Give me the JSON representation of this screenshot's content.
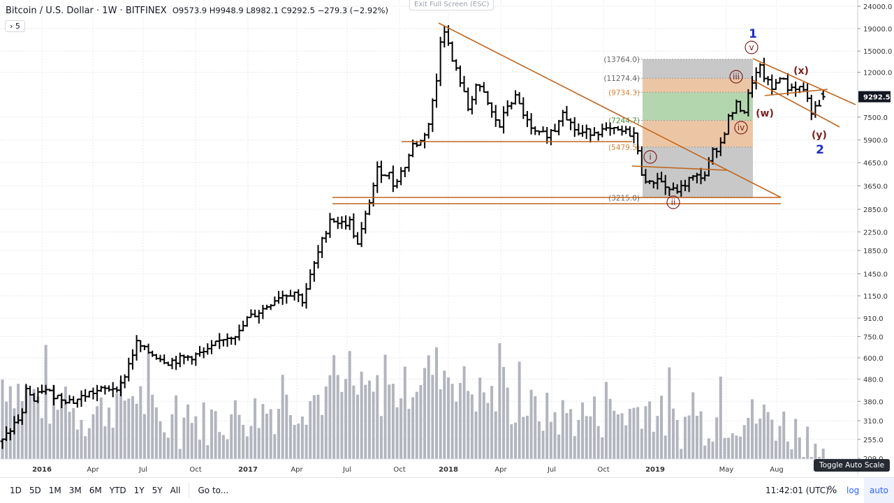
{
  "header": {
    "symbol": "Bitcoin / U.S. Dollar",
    "interval": "1W",
    "exchange": "BITFINEX",
    "open": "O9573.9",
    "high": "H9948.9",
    "low": "L8982.1",
    "close": "C9292.5",
    "change": "−279.3 (−2.92%)",
    "collapse_label": "› 5"
  },
  "exit_fullscreen": "Exit Full Screen (ESC)",
  "price_axis": {
    "ticks": [
      "24000.0",
      "19000.0",
      "15000.0",
      "12000.0",
      "7500.0",
      "5900.0",
      "4650.0",
      "3650.0",
      "2850.0",
      "2250.0",
      "1850.0",
      "1450.0",
      "1150.0",
      "910.0",
      "750.0",
      "600.0",
      "480.0",
      "380.0",
      "310.0",
      "255.0",
      "209.0"
    ],
    "last_price": "9292.5"
  },
  "time_axis": [
    "2016",
    "Apr",
    "Jul",
    "Oct",
    "2017",
    "Apr",
    "Jul",
    "Oct",
    "2018",
    "Apr",
    "Jul",
    "Oct",
    "2019",
    "May",
    "Aug"
  ],
  "tooltip": "Toggle Auto Scale",
  "toolbar": {
    "ranges": [
      "1D",
      "5D",
      "1M",
      "3M",
      "6M",
      "YTD",
      "1Y",
      "5Y",
      "All"
    ],
    "goto": "Go to...",
    "time": "11:42:01 (UTC)",
    "percent": "%",
    "log": "log",
    "auto": "auto"
  },
  "fib_levels": [
    {
      "label": "(13764.0)",
      "value": 13764
    },
    {
      "label": "(11274.4)",
      "value": 11274.4
    },
    {
      "label": "(9734.3)",
      "value": 9734.3
    },
    {
      "label": "(7244.7)",
      "value": 7244.7
    },
    {
      "label": "(5479.5)",
      "value": 5479.5
    },
    {
      "label": "(3215.0)",
      "value": 3215
    }
  ],
  "wave_labels": {
    "i": "i",
    "ii": "ii",
    "iii": "iii",
    "iv": "iv",
    "v": "v",
    "w": "(w)",
    "x": "(x)",
    "y": "(y)",
    "one": "1",
    "two": "2"
  },
  "colors": {
    "drawing": "#c0651c",
    "up_label": "#7b1f1f",
    "blue": "#1c2fc0"
  },
  "chart_data": {
    "type": "ohlc",
    "title": "Bitcoin / U.S. Dollar 1W BITFINEX",
    "scale": "log",
    "ylim": [
      209,
      24000
    ],
    "price_path": [
      [
        -10,
        250
      ],
      [
        -7,
        300
      ],
      [
        -5,
        330
      ],
      [
        -4,
        440
      ],
      [
        -2,
        380
      ],
      [
        0,
        430
      ],
      [
        4,
        400
      ],
      [
        8,
        380
      ],
      [
        12,
        415
      ],
      [
        16,
        430
      ],
      [
        20,
        450
      ],
      [
        24,
        700
      ],
      [
        26,
        650
      ],
      [
        30,
        600
      ],
      [
        32,
        575
      ],
      [
        38,
        610
      ],
      [
        42,
        640
      ],
      [
        46,
        740
      ],
      [
        50,
        780
      ],
      [
        52,
        900
      ],
      [
        56,
        1000
      ],
      [
        60,
        1150
      ],
      [
        64,
        1200
      ],
      [
        66,
        1100
      ],
      [
        70,
        1800
      ],
      [
        73,
        2600
      ],
      [
        76,
        2450
      ],
      [
        78,
        2500
      ],
      [
        80,
        1950
      ],
      [
        82,
        2650
      ],
      [
        85,
        4300
      ],
      [
        88,
        4100
      ],
      [
        89,
        3700
      ],
      [
        92,
        4500
      ],
      [
        94,
        5600
      ],
      [
        96,
        5800
      ],
      [
        98,
        7000
      ],
      [
        100,
        11000
      ],
      [
        101,
        17000
      ],
      [
        102,
        19000
      ],
      [
        104,
        13500
      ],
      [
        106,
        11000
      ],
      [
        108,
        8200
      ],
      [
        110,
        10500
      ],
      [
        112,
        9500
      ],
      [
        114,
        7800
      ],
      [
        116,
        6800
      ],
      [
        118,
        8500
      ],
      [
        120,
        9200
      ],
      [
        122,
        7800
      ],
      [
        124,
        6500
      ],
      [
        126,
        6200
      ],
      [
        128,
        6300
      ],
      [
        130,
        6600
      ],
      [
        132,
        8200
      ],
      [
        134,
        7000
      ],
      [
        136,
        6300
      ],
      [
        140,
        6500
      ],
      [
        144,
        6500
      ],
      [
        148,
        6400
      ],
      [
        150,
        6300
      ],
      [
        152,
        4200
      ],
      [
        154,
        3700
      ],
      [
        156,
        4000
      ],
      [
        158,
        3600
      ],
      [
        160,
        3450
      ],
      [
        162,
        3550
      ],
      [
        164,
        3900
      ],
      [
        166,
        4000
      ],
      [
        168,
        4100
      ],
      [
        170,
        5200
      ],
      [
        172,
        5700
      ],
      [
        174,
        7400
      ],
      [
        176,
        8500
      ],
      [
        178,
        8000
      ],
      [
        180,
        11000
      ],
      [
        182,
        12500
      ],
      [
        183,
        11500
      ],
      [
        185,
        10000
      ],
      [
        187,
        11600
      ],
      [
        189,
        10200
      ],
      [
        191,
        10300
      ],
      [
        193,
        10100
      ],
      [
        195,
        8000
      ],
      [
        197,
        8300
      ],
      [
        198,
        9292.5
      ]
    ],
    "volume_levels": [
      [
        -10,
        480
      ],
      [
        0,
        380
      ],
      [
        12,
        330
      ],
      [
        24,
        420
      ],
      [
        30,
        300
      ],
      [
        46,
        320
      ],
      [
        60,
        360
      ],
      [
        74,
        420
      ],
      [
        90,
        420
      ],
      [
        100,
        560
      ],
      [
        110,
        420
      ],
      [
        130,
        330
      ],
      [
        150,
        340
      ],
      [
        152,
        380
      ],
      [
        160,
        300
      ],
      [
        175,
        330
      ],
      [
        185,
        320
      ],
      [
        198,
        240
      ]
    ]
  }
}
